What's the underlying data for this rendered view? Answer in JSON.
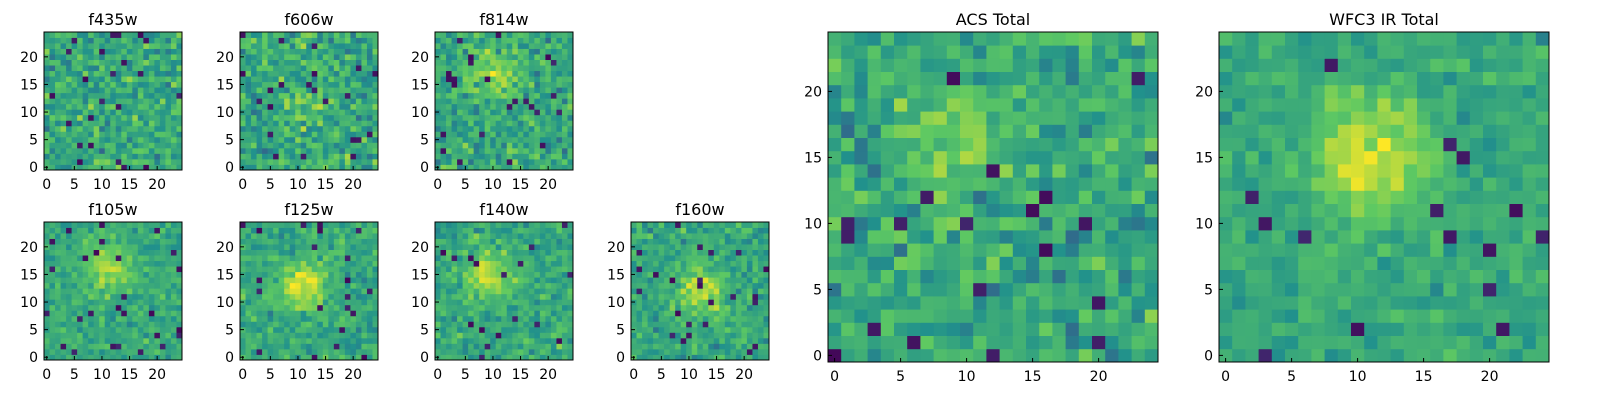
{
  "figure": {
    "colormap": "viridis",
    "colormap_stops": [
      "#440154",
      "#3b528b",
      "#21918c",
      "#5ec962",
      "#fde725"
    ]
  },
  "chart_data": [
    {
      "type": "heatmap",
      "title": "f435w",
      "grid_size": 25,
      "noise": 0.55,
      "blob_strength": 0.0,
      "blob_center": [
        12,
        12
      ],
      "xticks": [
        0,
        5,
        10,
        15,
        20
      ],
      "yticks": [
        0,
        5,
        10,
        15,
        20
      ],
      "xlim": [
        -0.5,
        24.5
      ],
      "ylim": [
        -0.5,
        24.5
      ],
      "grid": false
    },
    {
      "type": "heatmap",
      "title": "f606w",
      "grid_size": 25,
      "noise": 0.55,
      "blob_strength": 0.1,
      "blob_center": [
        12,
        12
      ],
      "xticks": [
        0,
        5,
        10,
        15,
        20
      ],
      "yticks": [
        0,
        5,
        10,
        15,
        20
      ],
      "xlim": [
        -0.5,
        24.5
      ],
      "ylim": [
        -0.5,
        24.5
      ],
      "grid": false
    },
    {
      "type": "heatmap",
      "title": "f814w",
      "grid_size": 25,
      "noise": 0.5,
      "blob_strength": 0.25,
      "blob_center": [
        10,
        17
      ],
      "xticks": [
        0,
        5,
        10,
        15,
        20
      ],
      "yticks": [
        0,
        5,
        10,
        15,
        20
      ],
      "xlim": [
        -0.5,
        24.5
      ],
      "ylim": [
        -0.5,
        24.5
      ],
      "grid": false
    },
    {
      "type": "heatmap",
      "title": "f105w",
      "grid_size": 25,
      "noise": 0.35,
      "blob_strength": 0.25,
      "blob_center": [
        11,
        16
      ],
      "xticks": [
        0,
        5,
        10,
        15,
        20
      ],
      "yticks": [
        0,
        5,
        10,
        15,
        20
      ],
      "xlim": [
        -0.5,
        24.5
      ],
      "ylim": [
        -0.5,
        24.5
      ],
      "grid": false
    },
    {
      "type": "heatmap",
      "title": "f125w",
      "grid_size": 25,
      "noise": 0.4,
      "blob_strength": 0.35,
      "blob_center": [
        11,
        13
      ],
      "xticks": [
        0,
        5,
        10,
        15,
        20
      ],
      "yticks": [
        0,
        5,
        10,
        15,
        20
      ],
      "xlim": [
        -0.5,
        24.5
      ],
      "ylim": [
        -0.5,
        24.5
      ],
      "grid": false
    },
    {
      "type": "heatmap",
      "title": "f140w",
      "grid_size": 25,
      "noise": 0.4,
      "blob_strength": 0.3,
      "blob_center": [
        9,
        15
      ],
      "xticks": [
        0,
        5,
        10,
        15,
        20
      ],
      "yticks": [
        0,
        5,
        10,
        15,
        20
      ],
      "xlim": [
        -0.5,
        24.5
      ],
      "ylim": [
        -0.5,
        24.5
      ],
      "grid": false
    },
    {
      "type": "heatmap",
      "title": "f160w",
      "grid_size": 25,
      "noise": 0.4,
      "blob_strength": 0.3,
      "blob_center": [
        12,
        12
      ],
      "xticks": [
        0,
        5,
        10,
        15,
        20
      ],
      "yticks": [
        0,
        5,
        10,
        15,
        20
      ],
      "xlim": [
        -0.5,
        24.5
      ],
      "ylim": [
        -0.5,
        24.5
      ],
      "grid": false
    },
    {
      "type": "heatmap",
      "title": "ACS Total",
      "grid_size": 25,
      "noise": 0.5,
      "blob_strength": 0.2,
      "blob_center": [
        9,
        17
      ],
      "xticks": [
        0,
        5,
        10,
        15,
        20
      ],
      "yticks": [
        0,
        5,
        10,
        15,
        20
      ],
      "xlim": [
        -0.5,
        24.5
      ],
      "ylim": [
        -0.5,
        24.5
      ],
      "grid": false
    },
    {
      "type": "heatmap",
      "title": "WFC3 IR Total",
      "grid_size": 25,
      "noise": 0.3,
      "blob_strength": 0.35,
      "blob_center": [
        11,
        15
      ],
      "xticks": [
        0,
        5,
        10,
        15,
        20
      ],
      "yticks": [
        0,
        5,
        10,
        15,
        20
      ],
      "xlim": [
        -0.5,
        24.5
      ],
      "ylim": [
        -0.5,
        24.5
      ],
      "grid": false
    }
  ]
}
